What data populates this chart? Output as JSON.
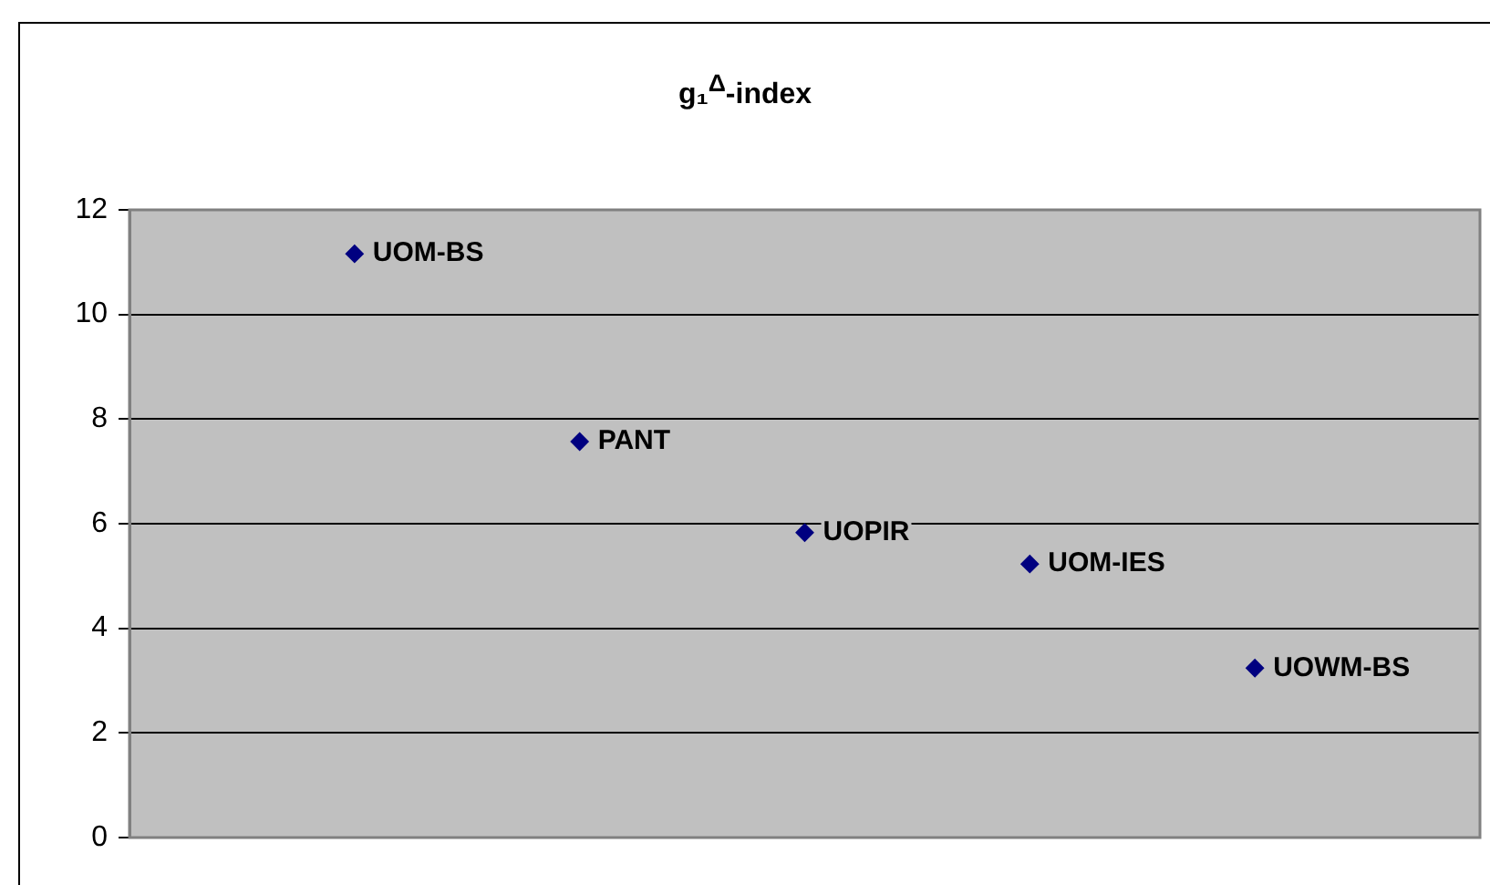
{
  "chart_data": {
    "type": "scatter",
    "title": "g₁$^{Δ}$-index",
    "categories": [
      null,
      null,
      null,
      null,
      null
    ],
    "values": [
      11.16,
      7.57,
      5.83,
      5.23,
      3.24
    ],
    "color": "#000080",
    "ylim": [
      0,
      12
    ],
    "yticks": [
      0,
      2,
      4,
      6,
      8,
      10,
      12
    ],
    "grid": "y",
    "legend": false,
    "marker": "diamond",
    "annotations": [
      "UOM-BS",
      "PANT",
      "UOPIR",
      "UOM-IES",
      "UOWM-BS"
    ]
  }
}
